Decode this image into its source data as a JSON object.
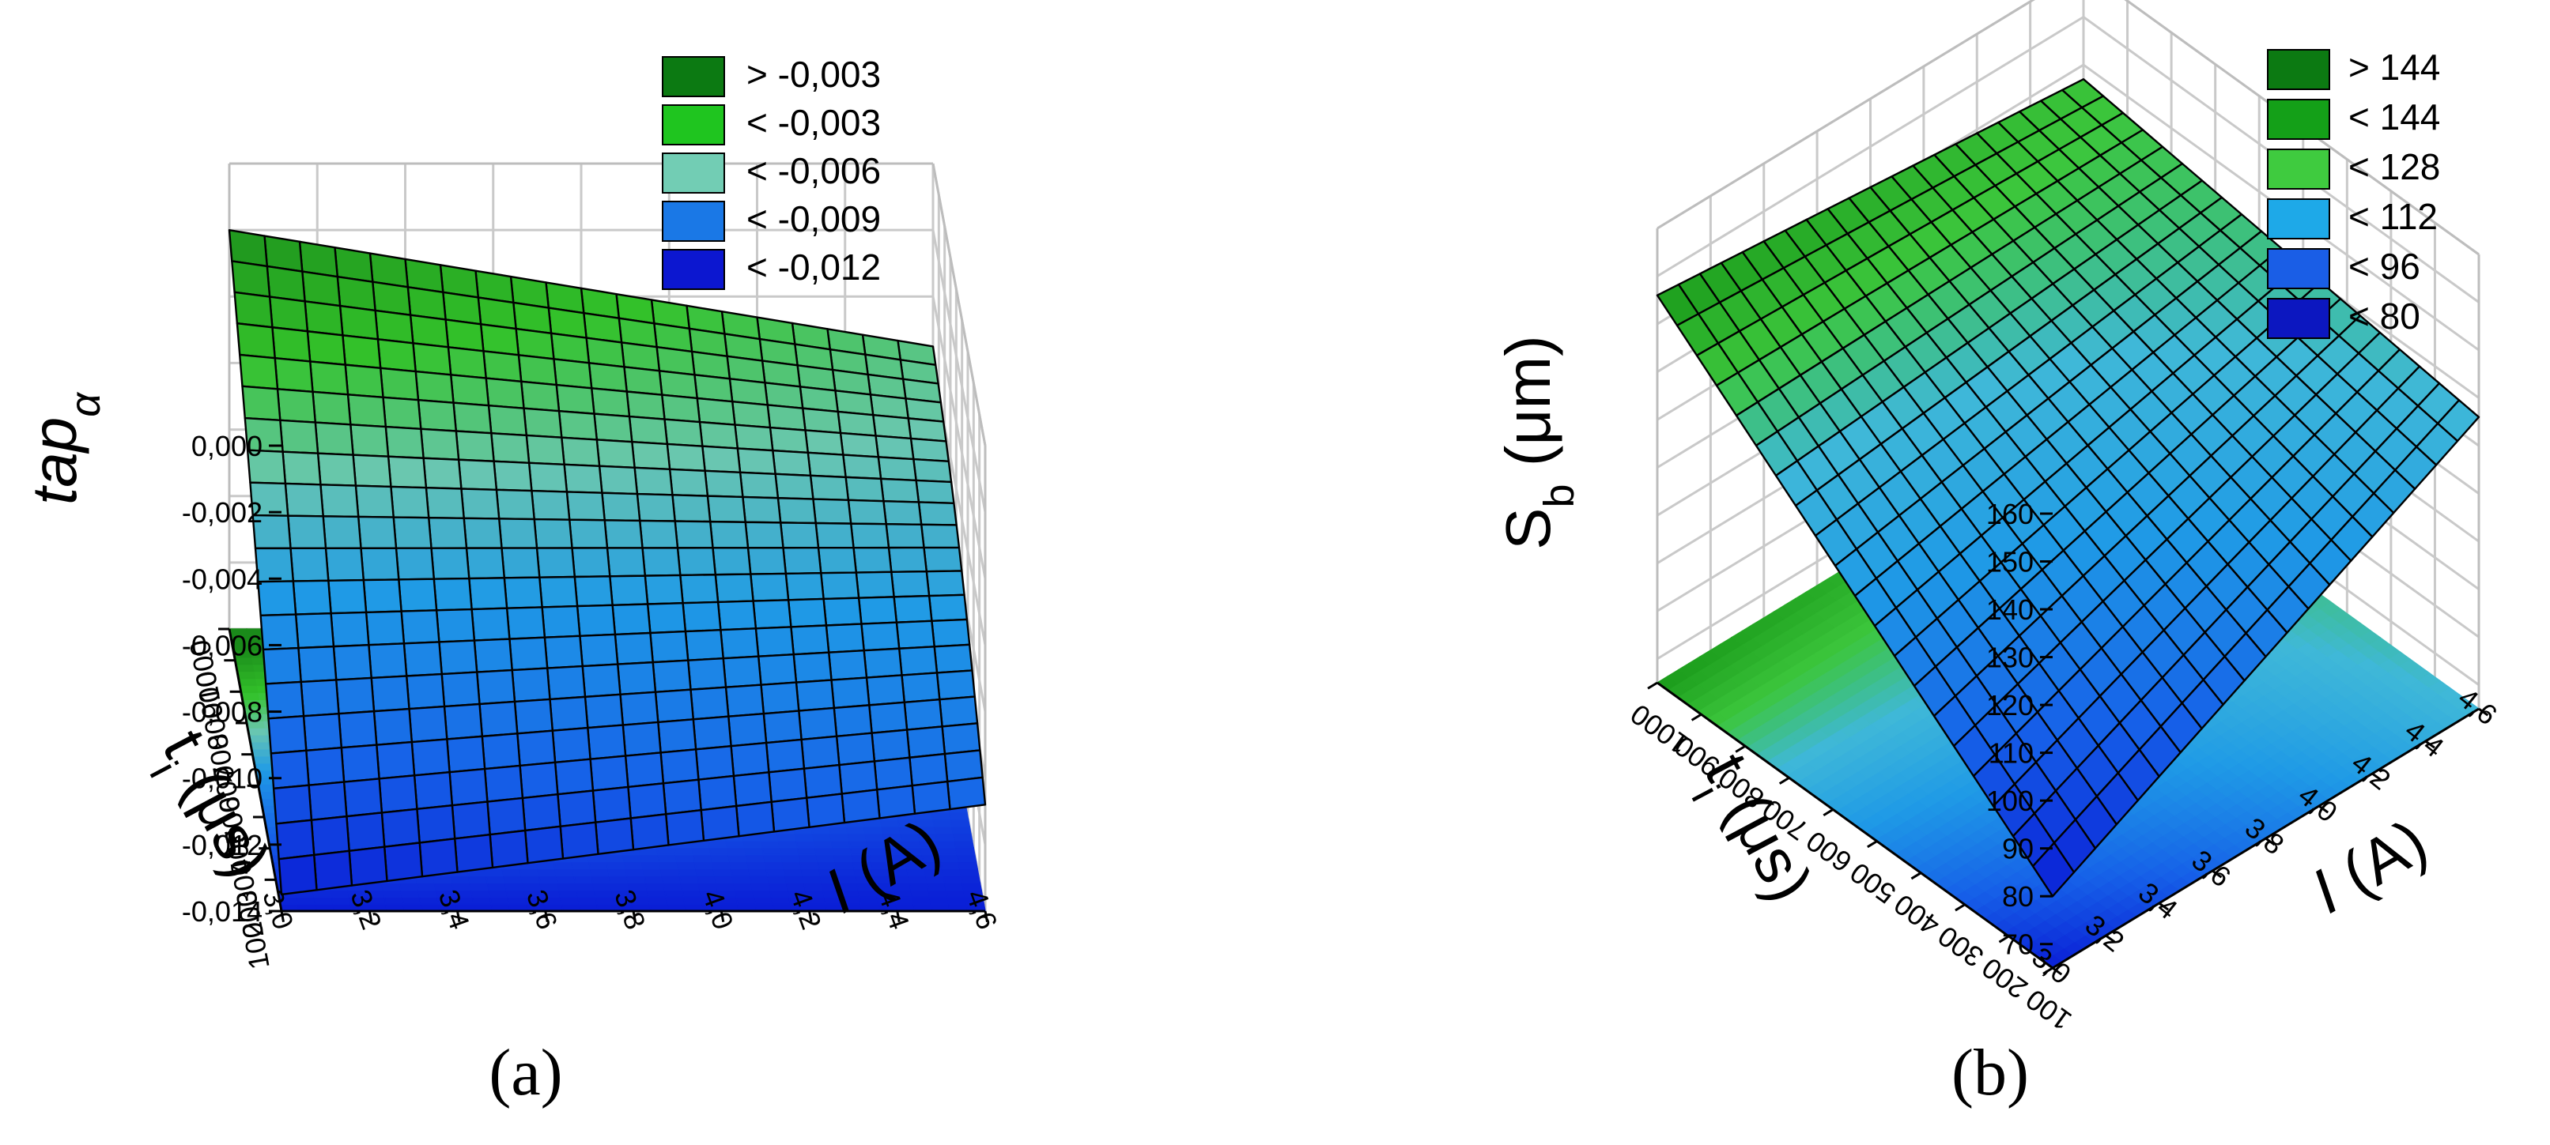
{
  "chart_data": [
    {
      "type": "surface3d",
      "panel_caption": "(a)",
      "zlabel_text": "tap",
      "zlabel_sub": "α",
      "ylabel_text": "t",
      "ylabel_sub": "i",
      "ylabel_rest": " (μs)",
      "xlabel_text": "I",
      "xlabel_rest": " (A)",
      "x_ticks": [
        "3,0",
        "3,2",
        "3,4",
        "3,6",
        "3,8",
        "4,0",
        "4,2",
        "4,4",
        "4,6"
      ],
      "y_ticks": [
        "100",
        "200",
        "300",
        "400",
        "500",
        "600",
        "700",
        "800",
        "900",
        "1000"
      ],
      "z_ticks": [
        "-0,014",
        "-0,012",
        "-0,010",
        "-0,008",
        "-0,006",
        "-0,004",
        "-0,002",
        "0,000"
      ],
      "x_range": [
        3.0,
        4.6
      ],
      "y_range": [
        100,
        1000
      ],
      "z_range": [
        -0.014,
        0.0
      ],
      "surface_corners": {
        "I3.0_t100": -0.0135,
        "I4.6_t100": -0.0108,
        "I3.0_t1000": -0.002,
        "I4.6_t1000": -0.0055
      },
      "legend": [
        {
          "label": "> -0,003",
          "color": "#0c7a12"
        },
        {
          "label": "< -0,003",
          "color": "#1fc51f"
        },
        {
          "label": "< -0,006",
          "color": "#72cdb4"
        },
        {
          "label": "< -0,009",
          "color": "#1a78e6"
        },
        {
          "label": "< -0,012",
          "color": "#0c17d0"
        }
      ],
      "grid": true
    },
    {
      "type": "surface3d",
      "panel_caption": "(b)",
      "zlabel_text": "S",
      "zlabel_sub": "b",
      "zlabel_rest": " (μm)",
      "ylabel_text": "t",
      "ylabel_sub": "i",
      "ylabel_rest": " (μs)",
      "xlabel_text": "I",
      "xlabel_rest": " (A)",
      "x_ticks": [
        "3,0",
        "3,2",
        "3,4",
        "3,6",
        "3,8",
        "4,0",
        "4,2",
        "4,4",
        "4,6"
      ],
      "y_ticks": [
        "100",
        "200",
        "300",
        "400",
        "500",
        "600",
        "700",
        "800",
        "900",
        "1000"
      ],
      "z_ticks": [
        "70",
        "80",
        "90",
        "100",
        "110",
        "120",
        "130",
        "140",
        "150",
        "160"
      ],
      "x_range": [
        3.0,
        4.6
      ],
      "y_range": [
        100,
        1000
      ],
      "z_range": [
        65,
        160
      ],
      "surface_corners": {
        "I3.0_t100": 80,
        "I4.6_t100": 126,
        "I3.0_t1000": 146,
        "I4.6_t1000": 137
      },
      "legend": [
        {
          "label": "> 144",
          "color": "#0c7a12"
        },
        {
          "label": "< 144",
          "color": "#14a018"
        },
        {
          "label": "< 128",
          "color": "#3fcb3f"
        },
        {
          "label": "< 112",
          "color": "#1ea9e8"
        },
        {
          "label": "< 96",
          "color": "#1a5ee6"
        },
        {
          "label": "< 80",
          "color": "#0c17c0"
        }
      ],
      "grid": true
    }
  ]
}
